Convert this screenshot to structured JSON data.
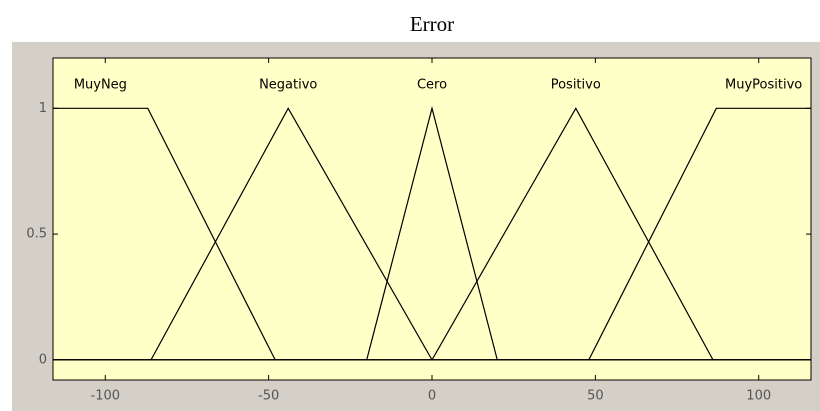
{
  "chart_data": {
    "type": "line",
    "title": "Error",
    "series": [
      {
        "name": "MuyNeg",
        "color": "#000000",
        "x": [
          -116,
          -87,
          -48,
          116
        ],
        "values": [
          1,
          1,
          0,
          0
        ]
      },
      {
        "name": "Negativo",
        "color": "#000000",
        "x": [
          -116,
          -86,
          -44,
          0,
          116
        ],
        "values": [
          0,
          0,
          1,
          0,
          0
        ]
      },
      {
        "name": "Cero",
        "color": "#000000",
        "x": [
          -116,
          -20,
          0,
          20,
          116
        ],
        "values": [
          0,
          0,
          1,
          0,
          0
        ]
      },
      {
        "name": "Positivo",
        "color": "#000000",
        "x": [
          -116,
          0,
          44,
          86,
          116
        ],
        "values": [
          0,
          0,
          1,
          0,
          0
        ]
      },
      {
        "name": "MuyPositivo",
        "color": "#000000",
        "x": [
          -116,
          48,
          87,
          116
        ],
        "values": [
          0,
          0,
          1,
          1
        ]
      }
    ],
    "xlim": [
      -116,
      116
    ],
    "ylim": [
      -0.08,
      1.2
    ],
    "xticks": [
      -100,
      -50,
      0,
      50,
      100
    ],
    "yticks": [
      0,
      0.5,
      1
    ],
    "grid": false,
    "plot_background": "#ffffc8"
  }
}
